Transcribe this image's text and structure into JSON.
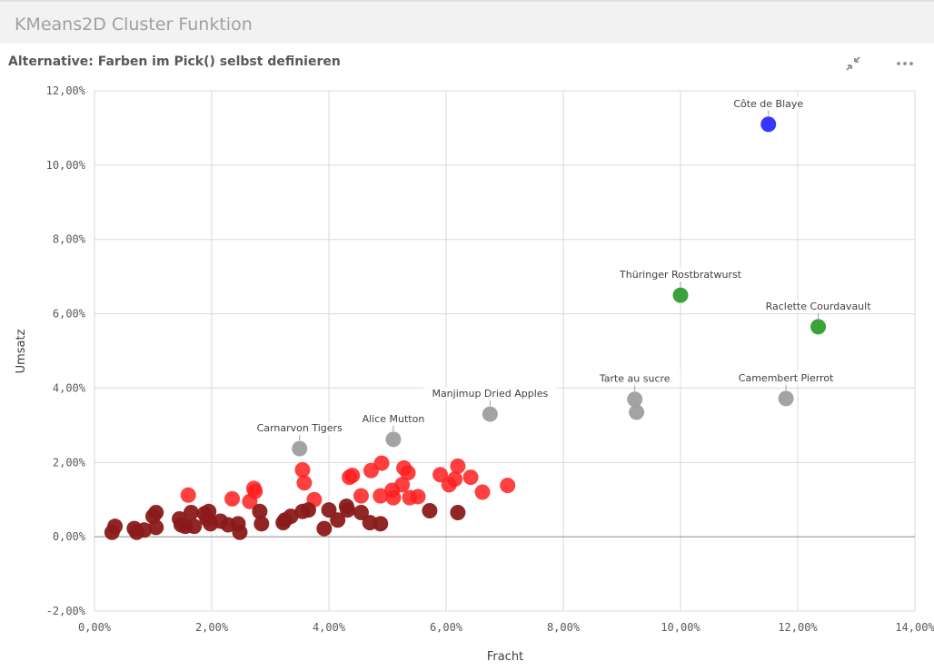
{
  "sheet": {
    "title": "KMeans2D Cluster Funktion"
  },
  "visualization": {
    "title": "Alternative: Farben im Pick() selbst definieren"
  },
  "toolbar": {
    "exit_fullscreen_icon": "collapse-arrows-icon",
    "more_icon": "more-dots-icon"
  },
  "colors": {
    "dark_red": "#8b1a1a",
    "red": "#ff1f1f",
    "gray": "#9e9e9e",
    "green": "#2e9e2e",
    "blue": "#2b2bff"
  },
  "chart_data": {
    "type": "scatter",
    "xlabel": "Fracht",
    "ylabel": "Umsatz",
    "xlim": [
      0,
      14
    ],
    "ylim": [
      -2,
      12
    ],
    "x_ticks": [
      "0,00%",
      "2,00%",
      "4,00%",
      "6,00%",
      "8,00%",
      "10,00%",
      "12,00%",
      "14,00%"
    ],
    "y_ticks": [
      "-2,00%",
      "0,00%",
      "2,00%",
      "4,00%",
      "6,00%",
      "8,00%",
      "10,00%",
      "12,00%"
    ],
    "grid": true,
    "points": [
      {
        "x": 11.5,
        "y": 11.1,
        "color": "blue",
        "label": "Côte de Blaye"
      },
      {
        "x": 10.0,
        "y": 6.5,
        "color": "green",
        "label": "Thüringer Rostbratwurst"
      },
      {
        "x": 12.35,
        "y": 5.65,
        "color": "green",
        "label": "Raclette Courdavault"
      },
      {
        "x": 11.8,
        "y": 3.72,
        "color": "gray",
        "label": "Camembert Pierrot"
      },
      {
        "x": 9.22,
        "y": 3.7,
        "color": "gray",
        "label": "Tarte au sucre"
      },
      {
        "x": 9.25,
        "y": 3.35,
        "color": "gray",
        "label": ""
      },
      {
        "x": 6.75,
        "y": 3.3,
        "color": "gray",
        "label": "Manjimup Dried Apples"
      },
      {
        "x": 5.1,
        "y": 2.62,
        "color": "gray",
        "label": "Alice Mutton"
      },
      {
        "x": 3.5,
        "y": 2.37,
        "color": "gray",
        "label": "Carnarvon Tigers"
      },
      {
        "x": 3.55,
        "y": 1.8,
        "color": "red",
        "label": ""
      },
      {
        "x": 3.58,
        "y": 1.45,
        "color": "red",
        "label": ""
      },
      {
        "x": 3.75,
        "y": 1.0,
        "color": "red",
        "label": ""
      },
      {
        "x": 4.35,
        "y": 1.6,
        "color": "red",
        "label": ""
      },
      {
        "x": 4.4,
        "y": 1.65,
        "color": "red",
        "label": ""
      },
      {
        "x": 4.55,
        "y": 1.1,
        "color": "red",
        "label": ""
      },
      {
        "x": 4.72,
        "y": 1.78,
        "color": "red",
        "label": ""
      },
      {
        "x": 4.9,
        "y": 1.98,
        "color": "red",
        "label": ""
      },
      {
        "x": 4.88,
        "y": 1.1,
        "color": "red",
        "label": ""
      },
      {
        "x": 5.08,
        "y": 1.25,
        "color": "red",
        "label": ""
      },
      {
        "x": 5.1,
        "y": 1.05,
        "color": "red",
        "label": ""
      },
      {
        "x": 5.25,
        "y": 1.4,
        "color": "red",
        "label": ""
      },
      {
        "x": 5.28,
        "y": 1.85,
        "color": "red",
        "label": ""
      },
      {
        "x": 5.35,
        "y": 1.72,
        "color": "red",
        "label": ""
      },
      {
        "x": 5.38,
        "y": 1.05,
        "color": "red",
        "label": ""
      },
      {
        "x": 5.52,
        "y": 1.08,
        "color": "red",
        "label": ""
      },
      {
        "x": 5.9,
        "y": 1.67,
        "color": "red",
        "label": ""
      },
      {
        "x": 6.05,
        "y": 1.4,
        "color": "red",
        "label": ""
      },
      {
        "x": 6.15,
        "y": 1.55,
        "color": "red",
        "label": ""
      },
      {
        "x": 6.2,
        "y": 1.9,
        "color": "red",
        "label": ""
      },
      {
        "x": 6.42,
        "y": 1.6,
        "color": "red",
        "label": ""
      },
      {
        "x": 6.62,
        "y": 1.2,
        "color": "red",
        "label": ""
      },
      {
        "x": 7.05,
        "y": 1.38,
        "color": "red",
        "label": ""
      },
      {
        "x": 1.6,
        "y": 1.12,
        "color": "red",
        "label": ""
      },
      {
        "x": 2.35,
        "y": 1.02,
        "color": "red",
        "label": ""
      },
      {
        "x": 2.65,
        "y": 0.95,
        "color": "red",
        "label": ""
      },
      {
        "x": 2.72,
        "y": 1.3,
        "color": "red",
        "label": ""
      },
      {
        "x": 2.74,
        "y": 1.22,
        "color": "red",
        "label": ""
      },
      {
        "x": 0.3,
        "y": 0.12,
        "color": "dark_red",
        "label": ""
      },
      {
        "x": 0.35,
        "y": 0.28,
        "color": "dark_red",
        "label": ""
      },
      {
        "x": 0.68,
        "y": 0.22,
        "color": "dark_red",
        "label": ""
      },
      {
        "x": 0.72,
        "y": 0.12,
        "color": "dark_red",
        "label": ""
      },
      {
        "x": 0.85,
        "y": 0.18,
        "color": "dark_red",
        "label": ""
      },
      {
        "x": 1.0,
        "y": 0.55,
        "color": "dark_red",
        "label": ""
      },
      {
        "x": 1.05,
        "y": 0.65,
        "color": "dark_red",
        "label": ""
      },
      {
        "x": 1.05,
        "y": 0.25,
        "color": "dark_red",
        "label": ""
      },
      {
        "x": 1.45,
        "y": 0.48,
        "color": "dark_red",
        "label": ""
      },
      {
        "x": 1.48,
        "y": 0.32,
        "color": "dark_red",
        "label": ""
      },
      {
        "x": 1.55,
        "y": 0.28,
        "color": "dark_red",
        "label": ""
      },
      {
        "x": 1.65,
        "y": 0.65,
        "color": "dark_red",
        "label": ""
      },
      {
        "x": 1.7,
        "y": 0.28,
        "color": "dark_red",
        "label": ""
      },
      {
        "x": 1.88,
        "y": 0.62,
        "color": "dark_red",
        "label": ""
      },
      {
        "x": 1.92,
        "y": 0.48,
        "color": "dark_red",
        "label": ""
      },
      {
        "x": 1.95,
        "y": 0.68,
        "color": "dark_red",
        "label": ""
      },
      {
        "x": 1.98,
        "y": 0.35,
        "color": "dark_red",
        "label": ""
      },
      {
        "x": 2.15,
        "y": 0.42,
        "color": "dark_red",
        "label": ""
      },
      {
        "x": 2.28,
        "y": 0.32,
        "color": "dark_red",
        "label": ""
      },
      {
        "x": 2.45,
        "y": 0.35,
        "color": "dark_red",
        "label": ""
      },
      {
        "x": 2.48,
        "y": 0.12,
        "color": "dark_red",
        "label": ""
      },
      {
        "x": 2.82,
        "y": 0.68,
        "color": "dark_red",
        "label": ""
      },
      {
        "x": 2.85,
        "y": 0.35,
        "color": "dark_red",
        "label": ""
      },
      {
        "x": 3.22,
        "y": 0.38,
        "color": "dark_red",
        "label": ""
      },
      {
        "x": 3.25,
        "y": 0.45,
        "color": "dark_red",
        "label": ""
      },
      {
        "x": 3.35,
        "y": 0.55,
        "color": "dark_red",
        "label": ""
      },
      {
        "x": 3.55,
        "y": 0.68,
        "color": "dark_red",
        "label": ""
      },
      {
        "x": 3.65,
        "y": 0.72,
        "color": "dark_red",
        "label": ""
      },
      {
        "x": 3.92,
        "y": 0.22,
        "color": "dark_red",
        "label": ""
      },
      {
        "x": 4.0,
        "y": 0.72,
        "color": "dark_red",
        "label": ""
      },
      {
        "x": 4.15,
        "y": 0.45,
        "color": "dark_red",
        "label": ""
      },
      {
        "x": 4.3,
        "y": 0.82,
        "color": "dark_red",
        "label": ""
      },
      {
        "x": 4.32,
        "y": 0.72,
        "color": "dark_red",
        "label": ""
      },
      {
        "x": 4.55,
        "y": 0.65,
        "color": "dark_red",
        "label": ""
      },
      {
        "x": 4.7,
        "y": 0.38,
        "color": "dark_red",
        "label": ""
      },
      {
        "x": 4.88,
        "y": 0.35,
        "color": "dark_red",
        "label": ""
      },
      {
        "x": 5.72,
        "y": 0.7,
        "color": "dark_red",
        "label": ""
      },
      {
        "x": 6.2,
        "y": 0.65,
        "color": "dark_red",
        "label": ""
      }
    ]
  }
}
